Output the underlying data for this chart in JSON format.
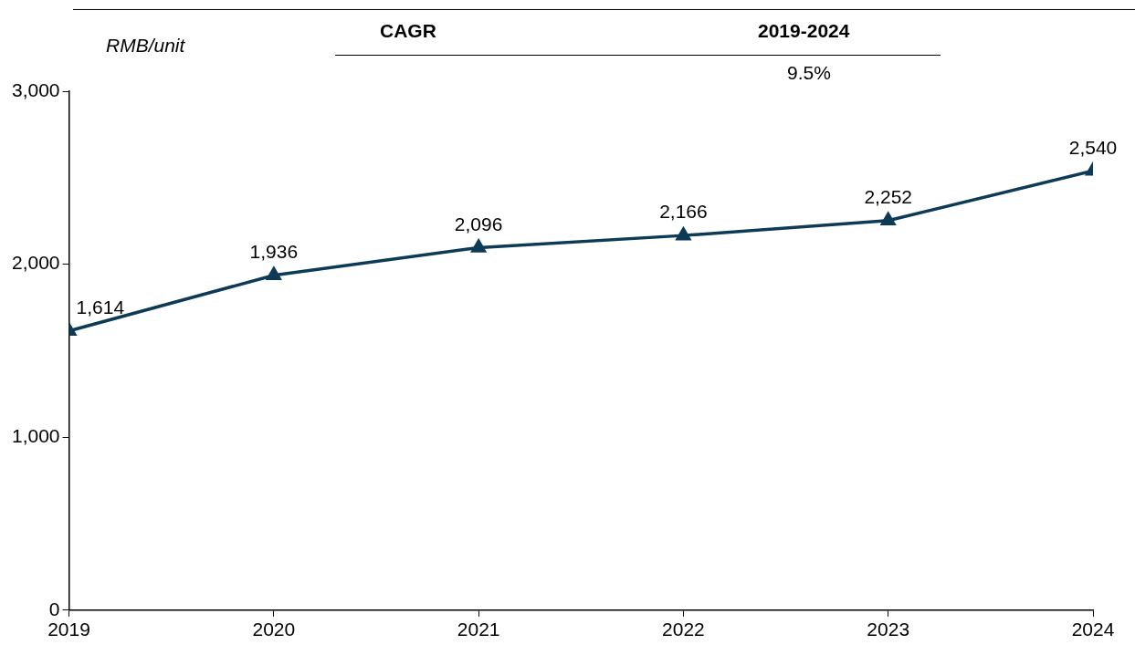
{
  "chart_data": {
    "type": "line",
    "ylabel": "RMB/unit",
    "annotations": [
      "CAGR",
      "2019-2024",
      "9.5%"
    ],
    "x": [
      2019,
      2020,
      2021,
      2022,
      2023,
      2024
    ],
    "series": [
      {
        "color": "#0d3a55",
        "values": [
          1614,
          1936,
          2096,
          2166,
          2252,
          2540
        ],
        "value_labels": [
          "1,614",
          "1,936",
          "2,096",
          "2,166",
          "2,252",
          "2,540"
        ]
      }
    ],
    "xlim": [
      2019,
      2024
    ],
    "xticks": [
      2019,
      2020,
      2021,
      2022,
      2023,
      2024
    ],
    "ylim": [
      0,
      3000
    ],
    "yticks": [
      {
        "value": 0,
        "label": "0"
      },
      {
        "value": 1000,
        "label": "1,000"
      },
      {
        "value": 2000,
        "label": "2,000"
      },
      {
        "value": 3000,
        "label": "3,000"
      }
    ],
    "grid": false,
    "legend": false,
    "marker": "triangle",
    "line_style": "solid"
  }
}
